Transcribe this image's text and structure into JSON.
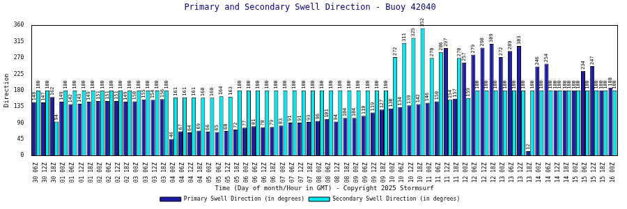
{
  "chart_data": {
    "type": "bar",
    "title": "Primary and Secondary Swell Direction - Buoy 42040",
    "xlabel": "Time (Day of month/Hour in GMT) - Copyright 2025 Stormsurf",
    "ylabel": "Direction",
    "categories": [
      "30 06Z",
      "30 12Z",
      "30 18Z",
      "01 00Z",
      "01 06Z",
      "01 12Z",
      "01 18Z",
      "02 00Z",
      "02 06Z",
      "02 12Z",
      "02 18Z",
      "03 00Z",
      "03 06Z",
      "03 12Z",
      "03 18Z",
      "04 00Z",
      "04 06Z",
      "04 12Z",
      "04 18Z",
      "05 00Z",
      "05 06Z",
      "05 12Z",
      "05 18Z",
      "06 00Z",
      "06 06Z",
      "06 12Z",
      "06 18Z",
      "07 00Z",
      "07 06Z",
      "07 12Z",
      "07 18Z",
      "08 00Z",
      "08 06Z",
      "08 12Z",
      "08 18Z",
      "09 00Z",
      "09 06Z",
      "09 12Z",
      "09 18Z",
      "10 00Z",
      "10 06Z",
      "10 12Z",
      "10 18Z",
      "11 00Z",
      "11 06Z",
      "11 12Z",
      "11 18Z",
      "12 00Z",
      "12 06Z",
      "12 12Z",
      "12 18Z",
      "13 00Z",
      "13 06Z",
      "13 12Z",
      "13 18Z",
      "14 00Z",
      "14 06Z",
      "14 12Z",
      "14 18Z",
      "15 00Z",
      "15 06Z",
      "15 12Z",
      "15 18Z",
      "16 00Z"
    ],
    "series": [
      {
        "name": "Primary Swell Direction (in degrees)",
        "color": "#1c1ca8",
        "values": [
          148,
          147,
          162,
          149,
          142,
          143,
          149,
          151,
          151,
          151,
          149,
          150,
          155,
          154,
          156,
          46,
          67,
          64,
          69,
          66,
          65,
          68,
          72,
          77,
          81,
          78,
          79,
          83,
          91,
          91,
          93,
          96,
          101,
          94,
          104,
          104,
          110,
          119,
          127,
          130,
          134,
          139,
          142,
          146,
          150,
          297,
          157,
          257,
          279,
          298,
          309,
          272,
          289,
          303,
          12,
          246,
          254,
          180,
          180,
          180,
          234,
          247,
          180,
          188
        ]
      },
      {
        "name": "Secondary Swell Direction (in degrees)",
        "color": "#00e8f0",
        "values": [
          180,
          180,
          94,
          180,
          180,
          180,
          180,
          180,
          180,
          180,
          180,
          180,
          180,
          180,
          180,
          161,
          161,
          161,
          160,
          160,
          164,
          163,
          180,
          180,
          180,
          180,
          180,
          180,
          180,
          180,
          180,
          180,
          180,
          180,
          180,
          180,
          180,
          180,
          180,
          272,
          311,
          325,
          352,
          270,
          286,
          154,
          270,
          159,
          180,
          180,
          180,
          180,
          180,
          180,
          180,
          180,
          180,
          180,
          180,
          180,
          180,
          180,
          180,
          180
        ]
      }
    ],
    "ylim": [
      0,
      360
    ],
    "yticks": [
      0,
      45,
      90,
      135,
      180,
      225,
      270,
      315,
      360
    ],
    "grid": false,
    "legend": "bottom",
    "data_labels": true
  }
}
